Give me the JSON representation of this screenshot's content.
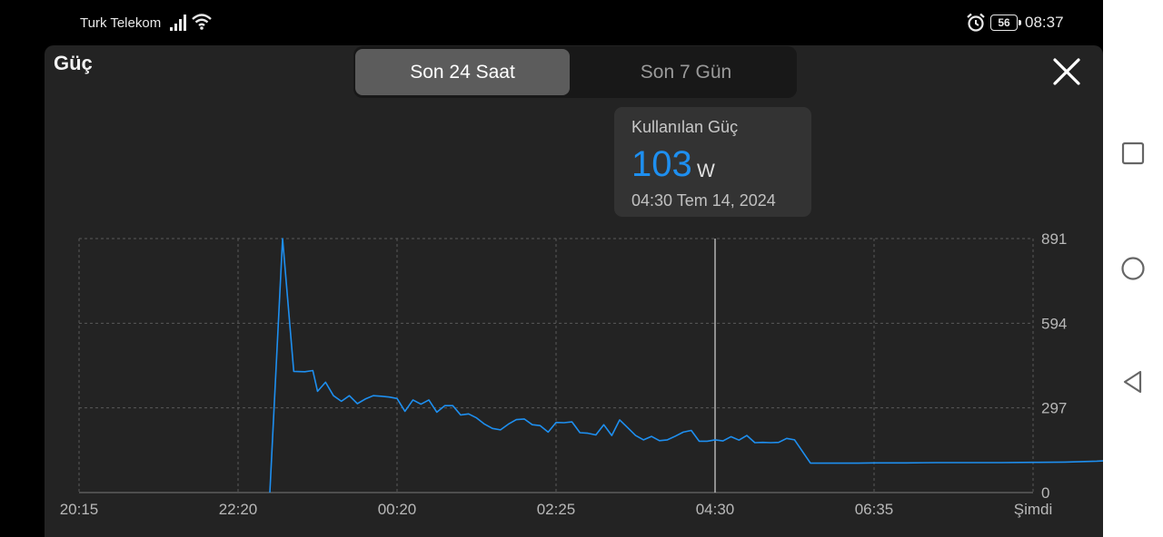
{
  "status_bar": {
    "carrier": "Turk Telekom",
    "battery": "56",
    "time": "08:37"
  },
  "panel": {
    "title": "Güç",
    "tabs": [
      {
        "label": "Son 24 Saat",
        "active": true
      },
      {
        "label": "Son 7 Gün",
        "active": false
      }
    ]
  },
  "tooltip": {
    "label": "Kullanılan Güç",
    "value": "103",
    "unit": "W",
    "datetime": "04:30   Tem 14, 2024"
  },
  "colors": {
    "line": "#1e8ff0",
    "accent": "#1e8ff0"
  },
  "chart_data": {
    "type": "line",
    "xlabel": "",
    "ylabel": "",
    "ylim": [
      0,
      891
    ],
    "y_ticks": [
      "0",
      "297",
      "594",
      "891"
    ],
    "x_tick_labels": [
      "20:15",
      "22:20",
      "00:20",
      "02:25",
      "04:30",
      "06:35",
      "Şimdi"
    ],
    "grid": true,
    "cursor_x": 4.0,
    "series": [
      {
        "values": [
          [
            1.2,
            0
          ],
          [
            1.28,
            891
          ],
          [
            1.35,
            425
          ],
          [
            1.42,
            424
          ],
          [
            1.47,
            428
          ],
          [
            1.5,
            355
          ],
          [
            1.55,
            387
          ],
          [
            1.6,
            340
          ],
          [
            1.65,
            320
          ],
          [
            1.7,
            340
          ],
          [
            1.75,
            312
          ],
          [
            1.8,
            328
          ],
          [
            1.85,
            340
          ],
          [
            1.9,
            338
          ],
          [
            1.95,
            335
          ],
          [
            2.0,
            330
          ],
          [
            2.05,
            285
          ],
          [
            2.1,
            325
          ],
          [
            2.15,
            310
          ],
          [
            2.2,
            325
          ],
          [
            2.25,
            282
          ],
          [
            2.3,
            305
          ],
          [
            2.35,
            305
          ],
          [
            2.4,
            272
          ],
          [
            2.45,
            276
          ],
          [
            2.5,
            262
          ],
          [
            2.55,
            240
          ],
          [
            2.6,
            225
          ],
          [
            2.65,
            220
          ],
          [
            2.7,
            240
          ],
          [
            2.75,
            256
          ],
          [
            2.8,
            258
          ],
          [
            2.85,
            238
          ],
          [
            2.9,
            235
          ],
          [
            2.95,
            212
          ],
          [
            3.0,
            246
          ],
          [
            3.05,
            245
          ],
          [
            3.1,
            248
          ],
          [
            3.15,
            210
          ],
          [
            3.2,
            208
          ],
          [
            3.25,
            202
          ],
          [
            3.3,
            238
          ],
          [
            3.35,
            200
          ],
          [
            3.4,
            255
          ],
          [
            3.45,
            228
          ],
          [
            3.5,
            200
          ],
          [
            3.55,
            185
          ],
          [
            3.6,
            197
          ],
          [
            3.65,
            182
          ],
          [
            3.7,
            185
          ],
          [
            3.75,
            198
          ],
          [
            3.8,
            212
          ],
          [
            3.85,
            218
          ],
          [
            3.9,
            180
          ],
          [
            3.95,
            180
          ],
          [
            4.0,
            185
          ],
          [
            4.05,
            181
          ],
          [
            4.1,
            196
          ],
          [
            4.15,
            184
          ],
          [
            4.2,
            200
          ],
          [
            4.25,
            175
          ],
          [
            4.3,
            176
          ],
          [
            4.35,
            175
          ],
          [
            4.4,
            176
          ],
          [
            4.45,
            190
          ],
          [
            4.5,
            185
          ],
          [
            4.6,
            103
          ],
          [
            4.7,
            103
          ],
          [
            4.8,
            103
          ],
          [
            4.9,
            103
          ],
          [
            5.0,
            104
          ],
          [
            5.2,
            104
          ],
          [
            5.4,
            105
          ],
          [
            5.6,
            105
          ],
          [
            5.8,
            105
          ],
          [
            6.0,
            106
          ],
          [
            6.2,
            107
          ],
          [
            6.4,
            110
          ],
          [
            6.5,
            113
          ],
          [
            6.55,
            114
          ],
          [
            6.6,
            112
          ],
          [
            6.65,
            114
          ],
          [
            6.7,
            130
          ],
          [
            6.75,
            129
          ],
          [
            6.8,
            127
          ],
          [
            6.85,
            175
          ],
          [
            6.9,
            135
          ],
          [
            6.95,
            114
          ],
          [
            7.0,
            114
          ],
          [
            7.05,
            113
          ]
        ]
      }
    ]
  },
  "nav": {
    "icons": [
      "square-icon",
      "circle-icon",
      "triangle-icon"
    ]
  }
}
